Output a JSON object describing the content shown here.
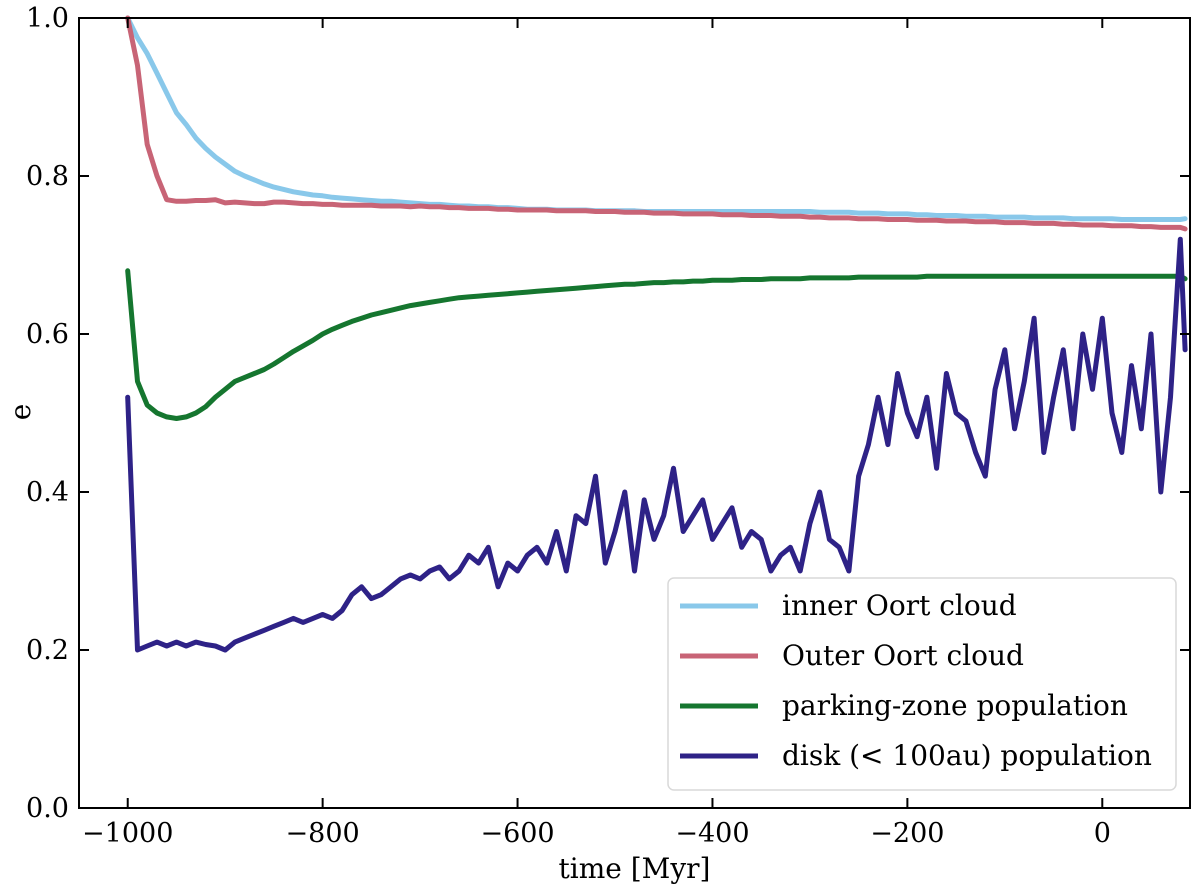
{
  "chart_data": {
    "type": "line",
    "title": "",
    "xlabel": "time [Myr]",
    "ylabel": "e",
    "xlim": [
      -1050,
      90
    ],
    "ylim": [
      0.0,
      1.0
    ],
    "x_ticks": [
      -1000,
      -800,
      -600,
      -400,
      -200,
      0
    ],
    "x_tick_labels": [
      "−1000",
      "−800",
      "−600",
      "−400",
      "−200",
      "0"
    ],
    "y_ticks": [
      0.0,
      0.2,
      0.4,
      0.6,
      0.8,
      1.0
    ],
    "y_tick_labels": [
      "0.0",
      "0.2",
      "0.4",
      "0.6",
      "0.8",
      "1.0"
    ],
    "grid": false,
    "legend_position": "bottom-right",
    "x": [
      -1000,
      -990,
      -980,
      -970,
      -960,
      -950,
      -940,
      -930,
      -920,
      -910,
      -900,
      -890,
      -880,
      -870,
      -860,
      -850,
      -840,
      -830,
      -820,
      -810,
      -800,
      -790,
      -780,
      -770,
      -760,
      -750,
      -740,
      -730,
      -720,
      -710,
      -700,
      -690,
      -680,
      -670,
      -660,
      -650,
      -640,
      -630,
      -620,
      -610,
      -600,
      -590,
      -580,
      -570,
      -560,
      -550,
      -540,
      -530,
      -520,
      -510,
      -500,
      -490,
      -480,
      -470,
      -460,
      -450,
      -440,
      -430,
      -420,
      -410,
      -400,
      -390,
      -380,
      -370,
      -360,
      -350,
      -340,
      -330,
      -320,
      -310,
      -300,
      -290,
      -280,
      -270,
      -260,
      -250,
      -240,
      -230,
      -220,
      -210,
      -200,
      -190,
      -180,
      -170,
      -160,
      -150,
      -140,
      -130,
      -120,
      -110,
      -100,
      -90,
      -80,
      -70,
      -60,
      -50,
      -40,
      -30,
      -20,
      -10,
      0,
      10,
      20,
      30,
      40,
      50,
      60,
      70,
      80,
      85
    ],
    "series": [
      {
        "name": "inner Oort cloud",
        "color": "#89c8ea",
        "values": [
          1.0,
          0.975,
          0.955,
          0.93,
          0.905,
          0.88,
          0.865,
          0.848,
          0.835,
          0.824,
          0.815,
          0.806,
          0.8,
          0.795,
          0.79,
          0.786,
          0.783,
          0.78,
          0.778,
          0.776,
          0.775,
          0.773,
          0.772,
          0.771,
          0.77,
          0.769,
          0.768,
          0.768,
          0.767,
          0.766,
          0.765,
          0.764,
          0.764,
          0.763,
          0.762,
          0.762,
          0.761,
          0.761,
          0.76,
          0.76,
          0.759,
          0.758,
          0.758,
          0.758,
          0.757,
          0.757,
          0.757,
          0.757,
          0.756,
          0.756,
          0.756,
          0.756,
          0.756,
          0.755,
          0.755,
          0.755,
          0.755,
          0.755,
          0.755,
          0.755,
          0.755,
          0.755,
          0.755,
          0.755,
          0.755,
          0.755,
          0.755,
          0.755,
          0.755,
          0.755,
          0.755,
          0.754,
          0.754,
          0.754,
          0.754,
          0.753,
          0.753,
          0.753,
          0.752,
          0.752,
          0.752,
          0.751,
          0.751,
          0.75,
          0.75,
          0.75,
          0.749,
          0.749,
          0.749,
          0.748,
          0.748,
          0.748,
          0.748,
          0.747,
          0.747,
          0.747,
          0.747,
          0.746,
          0.746,
          0.746,
          0.746,
          0.746,
          0.745,
          0.745,
          0.745,
          0.745,
          0.745,
          0.745,
          0.745,
          0.746
        ]
      },
      {
        "name": "Outer Oort cloud",
        "color": "#c86476",
        "values": [
          1.0,
          0.94,
          0.84,
          0.8,
          0.77,
          0.768,
          0.768,
          0.769,
          0.769,
          0.77,
          0.766,
          0.767,
          0.766,
          0.765,
          0.765,
          0.767,
          0.767,
          0.766,
          0.765,
          0.765,
          0.764,
          0.764,
          0.763,
          0.763,
          0.763,
          0.763,
          0.762,
          0.762,
          0.762,
          0.761,
          0.762,
          0.761,
          0.761,
          0.76,
          0.76,
          0.759,
          0.759,
          0.759,
          0.758,
          0.758,
          0.757,
          0.757,
          0.757,
          0.757,
          0.756,
          0.756,
          0.756,
          0.756,
          0.755,
          0.755,
          0.755,
          0.754,
          0.754,
          0.754,
          0.753,
          0.753,
          0.753,
          0.752,
          0.752,
          0.752,
          0.752,
          0.751,
          0.751,
          0.751,
          0.75,
          0.75,
          0.75,
          0.749,
          0.749,
          0.749,
          0.748,
          0.748,
          0.747,
          0.747,
          0.747,
          0.746,
          0.746,
          0.746,
          0.745,
          0.745,
          0.745,
          0.744,
          0.744,
          0.744,
          0.743,
          0.743,
          0.743,
          0.742,
          0.742,
          0.742,
          0.741,
          0.741,
          0.741,
          0.74,
          0.74,
          0.74,
          0.739,
          0.739,
          0.738,
          0.738,
          0.738,
          0.737,
          0.737,
          0.737,
          0.736,
          0.736,
          0.735,
          0.735,
          0.735,
          0.733
        ]
      },
      {
        "name": "parking-zone population",
        "color": "#15762f",
        "values": [
          0.68,
          0.54,
          0.51,
          0.5,
          0.495,
          0.493,
          0.495,
          0.5,
          0.508,
          0.52,
          0.53,
          0.54,
          0.545,
          0.55,
          0.555,
          0.562,
          0.57,
          0.578,
          0.585,
          0.592,
          0.6,
          0.606,
          0.611,
          0.616,
          0.62,
          0.624,
          0.627,
          0.63,
          0.633,
          0.636,
          0.638,
          0.64,
          0.642,
          0.644,
          0.646,
          0.647,
          0.648,
          0.649,
          0.65,
          0.651,
          0.652,
          0.653,
          0.654,
          0.655,
          0.656,
          0.657,
          0.658,
          0.659,
          0.66,
          0.661,
          0.662,
          0.663,
          0.663,
          0.664,
          0.665,
          0.665,
          0.666,
          0.666,
          0.667,
          0.667,
          0.668,
          0.668,
          0.668,
          0.669,
          0.669,
          0.669,
          0.67,
          0.67,
          0.67,
          0.67,
          0.671,
          0.671,
          0.671,
          0.671,
          0.671,
          0.672,
          0.672,
          0.672,
          0.672,
          0.672,
          0.672,
          0.672,
          0.673,
          0.673,
          0.673,
          0.673,
          0.673,
          0.673,
          0.673,
          0.673,
          0.673,
          0.673,
          0.673,
          0.673,
          0.673,
          0.673,
          0.673,
          0.673,
          0.673,
          0.673,
          0.673,
          0.673,
          0.673,
          0.673,
          0.673,
          0.673,
          0.673,
          0.673,
          0.673,
          0.67
        ]
      },
      {
        "name": "disk (< 100au) population",
        "color": "#2e2287",
        "values": [
          0.52,
          0.2,
          0.205,
          0.21,
          0.205,
          0.21,
          0.205,
          0.21,
          0.207,
          0.205,
          0.2,
          0.21,
          0.215,
          0.22,
          0.225,
          0.23,
          0.235,
          0.24,
          0.235,
          0.24,
          0.245,
          0.24,
          0.25,
          0.27,
          0.28,
          0.265,
          0.27,
          0.28,
          0.29,
          0.295,
          0.29,
          0.3,
          0.305,
          0.29,
          0.3,
          0.32,
          0.31,
          0.33,
          0.28,
          0.31,
          0.3,
          0.32,
          0.33,
          0.31,
          0.35,
          0.3,
          0.37,
          0.36,
          0.42,
          0.31,
          0.35,
          0.4,
          0.3,
          0.39,
          0.34,
          0.37,
          0.43,
          0.35,
          0.37,
          0.39,
          0.34,
          0.36,
          0.38,
          0.33,
          0.35,
          0.34,
          0.3,
          0.32,
          0.33,
          0.3,
          0.36,
          0.4,
          0.34,
          0.33,
          0.3,
          0.42,
          0.46,
          0.52,
          0.46,
          0.55,
          0.5,
          0.47,
          0.52,
          0.43,
          0.55,
          0.5,
          0.49,
          0.45,
          0.42,
          0.53,
          0.58,
          0.48,
          0.54,
          0.62,
          0.45,
          0.52,
          0.58,
          0.48,
          0.6,
          0.53,
          0.62,
          0.5,
          0.45,
          0.56,
          0.48,
          0.6,
          0.4,
          0.52,
          0.72,
          0.58
        ]
      }
    ]
  }
}
